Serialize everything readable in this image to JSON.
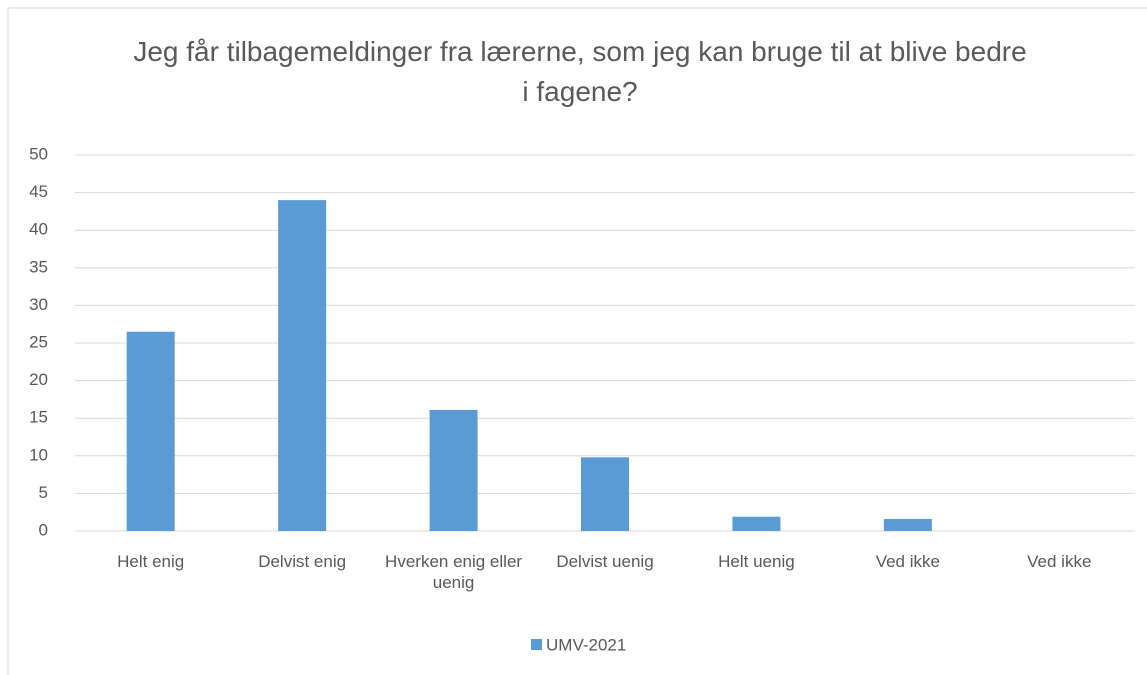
{
  "chart_data": {
    "type": "bar",
    "title": "Jeg får tilbagemeldinger fra lærerne, som jeg kan bruge til at blive bedre i fagene?",
    "categories": [
      "Helt enig",
      "Delvist enig",
      "Hverken enig eller uenig",
      "Delvist uenig",
      "Helt uenig",
      "Ved ikke",
      "Ved ikke"
    ],
    "series": [
      {
        "name": "UMV-2021",
        "color": "#5b9bd5",
        "values": [
          26.5,
          44,
          16.1,
          9.8,
          1.9,
          1.6,
          0
        ]
      }
    ],
    "ylim": [
      0,
      50
    ],
    "yticks": [
      0,
      5,
      10,
      15,
      20,
      25,
      30,
      35,
      40,
      45,
      50
    ],
    "grid": true,
    "legend": "bottom"
  }
}
